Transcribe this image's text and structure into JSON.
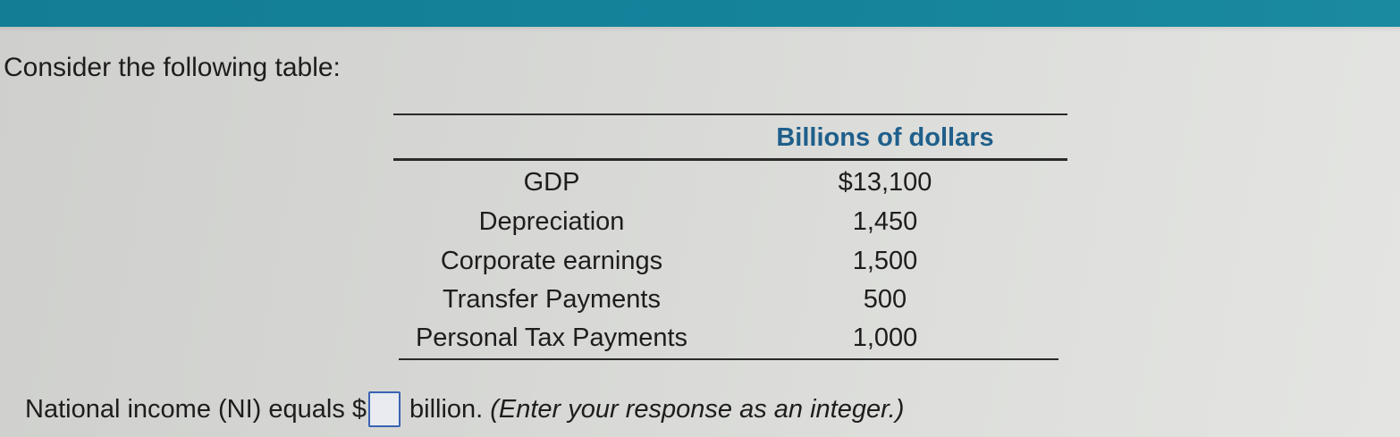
{
  "prompt": "Consider the following table:",
  "table": {
    "header": "Billions of dollars",
    "rows": [
      {
        "label": "GDP",
        "value": "$13,100"
      },
      {
        "label": "Depreciation",
        "value": "1,450"
      },
      {
        "label": "Corporate earnings",
        "value": "1,500"
      },
      {
        "label": "Transfer Payments",
        "value": "500"
      },
      {
        "label": "Personal Tax Payments",
        "value": "1,000"
      }
    ]
  },
  "question": {
    "prefix": "National income (NI) equals $",
    "answer_value": "",
    "suffix": "billion.",
    "hint": "(Enter your response as an integer.)"
  },
  "colors": {
    "top_bar": "#14839a",
    "header_text": "#1f5f8b",
    "answer_border": "#3a63b3"
  }
}
